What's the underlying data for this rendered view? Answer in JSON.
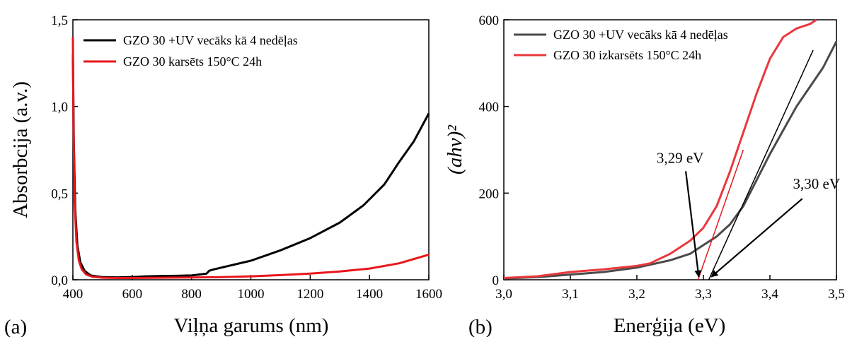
{
  "colors": {
    "black_series": "#000000",
    "red_series": "#e8161b",
    "gray_series": "#4a4a4a",
    "red_series_b": "#e8383c",
    "fit_line_black": "#000000",
    "fit_line_red": "#e8161b"
  },
  "chart_data": [
    {
      "type": "line",
      "panel_label": "(a)",
      "xlabel": "Viļņa garums (nm)",
      "ylabel": "Absorbcija (a.v.)",
      "xlim": [
        400,
        1600
      ],
      "ylim": [
        0,
        1.5
      ],
      "xticks": [
        "400",
        "600",
        "800",
        "1000",
        "1200",
        "1400",
        "1600"
      ],
      "yticks": [
        "0,0",
        "0,5",
        "1,0",
        "1,5"
      ],
      "xtick_values": [
        400,
        600,
        800,
        1000,
        1200,
        1400,
        1600
      ],
      "ytick_values": [
        0,
        0.5,
        1.0,
        1.5
      ],
      "legend_position": "top-left",
      "series": [
        {
          "name": "GZO 30 +UV vecāks kā 4 nedēļas",
          "color": "#000000",
          "x": [
            400,
            403,
            408,
            415,
            425,
            440,
            460,
            500,
            550,
            600,
            650,
            700,
            750,
            800,
            850,
            860,
            870,
            900,
            1000,
            1100,
            1200,
            1300,
            1380,
            1450,
            1500,
            1550,
            1600
          ],
          "y": [
            1.3,
            0.8,
            0.4,
            0.2,
            0.1,
            0.05,
            0.025,
            0.015,
            0.014,
            0.016,
            0.02,
            0.022,
            0.023,
            0.025,
            0.035,
            0.052,
            0.058,
            0.07,
            0.11,
            0.17,
            0.24,
            0.33,
            0.43,
            0.55,
            0.68,
            0.8,
            0.96
          ]
        },
        {
          "name": "GZO 30 karsēts 150°C 24h",
          "color": "#e8161b",
          "x": [
            400,
            402,
            406,
            412,
            420,
            430,
            445,
            465,
            500,
            550,
            600,
            700,
            800,
            900,
            1000,
            1100,
            1200,
            1300,
            1400,
            1500,
            1600
          ],
          "y": [
            1.4,
            0.9,
            0.45,
            0.22,
            0.11,
            0.06,
            0.03,
            0.018,
            0.012,
            0.01,
            0.01,
            0.012,
            0.013,
            0.015,
            0.02,
            0.027,
            0.036,
            0.048,
            0.065,
            0.095,
            0.145
          ]
        }
      ]
    },
    {
      "type": "line",
      "panel_label": "(b)",
      "xlabel": "Enerģija (eV)",
      "ylabel": "(ahv)²",
      "xlim": [
        3.0,
        3.5
      ],
      "ylim": [
        0,
        600
      ],
      "xticks": [
        "3,0",
        "3,1",
        "3,2",
        "3,3",
        "3,4",
        "3,5"
      ],
      "yticks": [
        "0",
        "200",
        "400",
        "600"
      ],
      "xtick_values": [
        3.0,
        3.1,
        3.2,
        3.3,
        3.4,
        3.5
      ],
      "ytick_values": [
        0,
        200,
        400,
        600
      ],
      "legend_position": "top-left",
      "series": [
        {
          "name": "GZO 30 +UV vecāks kā 4 nedēļas",
          "color": "#4a4a4a",
          "x": [
            3.0,
            3.05,
            3.1,
            3.15,
            3.2,
            3.25,
            3.28,
            3.3,
            3.32,
            3.34,
            3.36,
            3.38,
            3.4,
            3.42,
            3.44,
            3.46,
            3.48,
            3.5
          ],
          "y": [
            3,
            6,
            12,
            18,
            28,
            45,
            60,
            80,
            100,
            128,
            170,
            230,
            290,
            345,
            400,
            445,
            490,
            550
          ]
        },
        {
          "name": "GZO 30 izkarsēts 150°C 24h",
          "color": "#e8383c",
          "x": [
            3.0,
            3.05,
            3.1,
            3.15,
            3.2,
            3.22,
            3.25,
            3.28,
            3.3,
            3.32,
            3.34,
            3.36,
            3.38,
            3.4,
            3.42,
            3.44,
            3.46,
            3.47
          ],
          "y": [
            4,
            8,
            18,
            24,
            32,
            38,
            60,
            90,
            120,
            170,
            250,
            340,
            430,
            510,
            560,
            580,
            590,
            600
          ]
        }
      ],
      "fit_lines": [
        {
          "x": [
            3.308,
            3.465
          ],
          "y": [
            0,
            530
          ],
          "color": "#000000"
        },
        {
          "x": [
            3.292,
            3.36
          ],
          "y": [
            0,
            300
          ],
          "color": "#e8161b"
        }
      ],
      "annotations": [
        {
          "text": "3,29 eV",
          "x_text": 3.265,
          "y_text": 270,
          "arrow_to": [
            3.293,
            2
          ]
        },
        {
          "text": "3,30 eV",
          "x_text": 3.47,
          "y_text": 210,
          "arrow_to": [
            3.312,
            2
          ]
        }
      ]
    }
  ]
}
